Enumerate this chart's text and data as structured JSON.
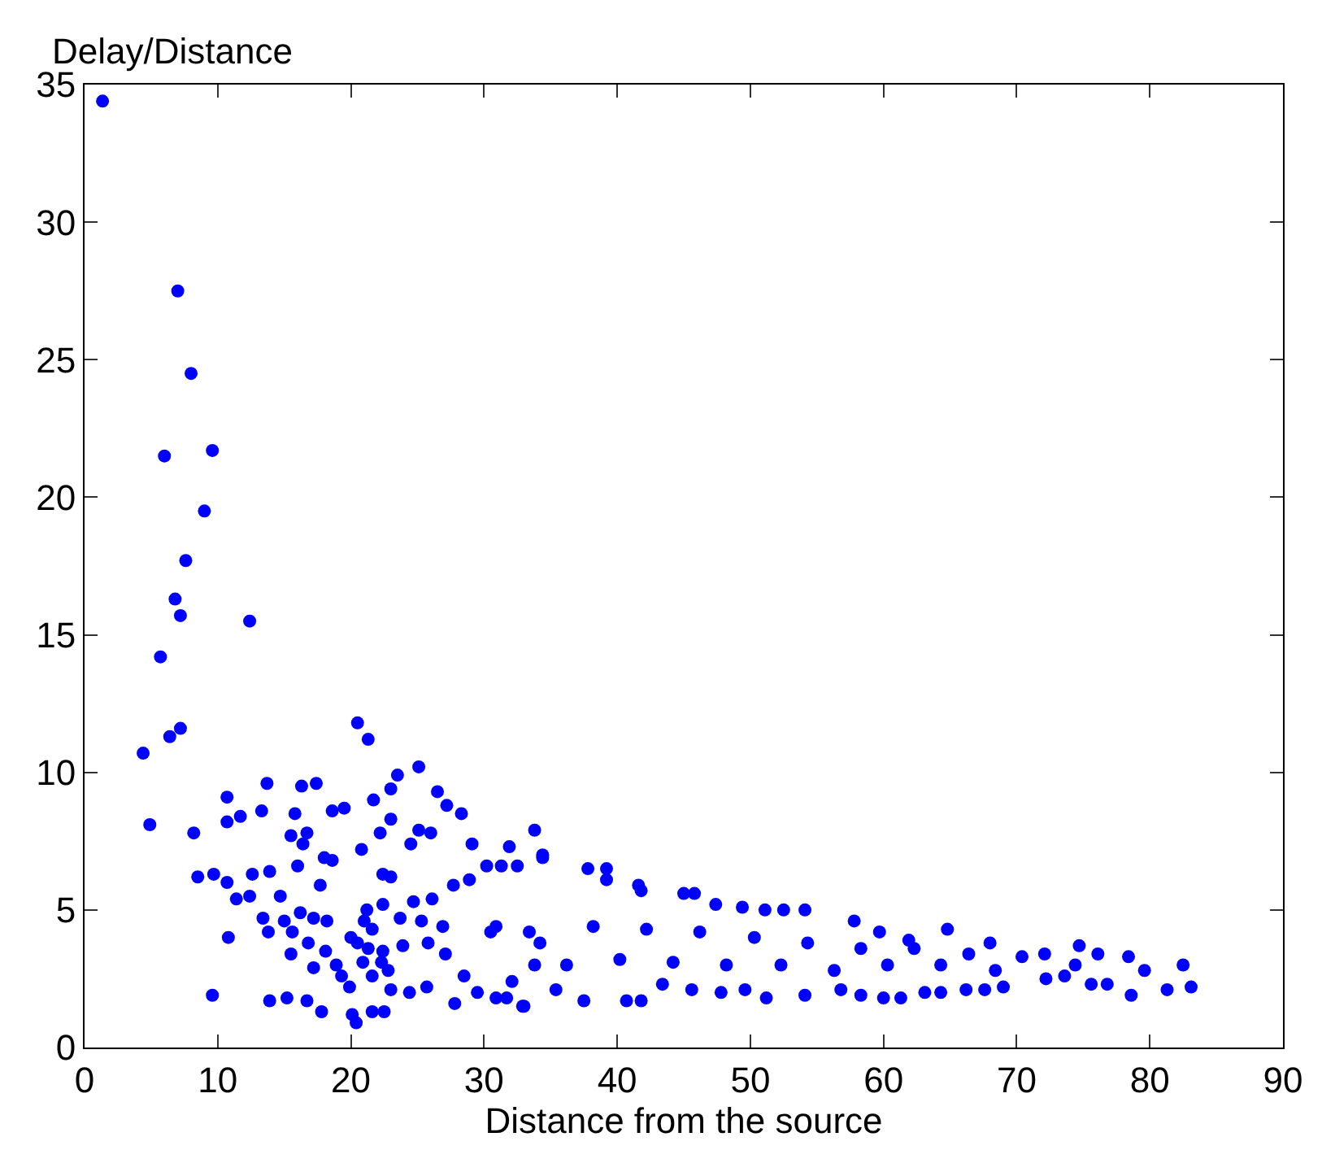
{
  "chart_data": {
    "type": "scatter",
    "xlabel": "Distance from the source",
    "ylabel": "Delay/Distance",
    "xlim": [
      0,
      90
    ],
    "xticks": [
      0,
      10,
      20,
      30,
      40,
      50,
      60,
      70,
      80,
      90
    ],
    "ylim": [
      0,
      35
    ],
    "yticks": [
      0,
      5,
      10,
      15,
      20,
      25,
      30,
      35
    ],
    "marker": "circle",
    "series": [
      {
        "color": "#0000ff",
        "x": [
          1.35,
          7.0,
          8.0,
          6.0,
          9.6,
          9.0,
          7.6,
          6.8,
          7.2,
          12.4,
          5.7,
          20.5,
          21.3,
          7.2,
          6.4,
          4.4,
          25.1,
          4.9,
          8.2,
          23.5,
          23.0,
          21.7,
          13.7,
          10.7,
          16.3,
          17.4,
          19.5,
          18.6,
          13.3,
          11.7,
          10.7,
          15.8,
          26.5,
          27.2,
          28.3,
          23.0,
          22.2,
          25.1,
          26.0,
          15.5,
          16.7,
          16.4,
          20.8,
          24.5,
          29.1,
          18.0,
          18.6,
          33.8,
          8.5,
          9.7,
          12.6,
          13.9,
          16.0,
          22.4,
          23.0,
          31.9,
          30.2,
          31.3,
          32.5,
          34.4,
          10.7,
          12.4,
          14.7,
          17.7,
          11.4,
          10.8,
          13.4,
          13.8,
          15.0,
          16.2,
          15.6,
          17.2,
          18.2,
          16.8,
          18.1,
          17.2,
          15.5,
          18.9,
          19.3,
          19.9,
          9.6,
          13.9,
          15.2,
          16.7,
          17.8,
          20.1,
          20.4,
          21.6,
          22.5,
          20.0,
          20.5,
          21.2,
          21.0,
          21.6,
          21.3,
          22.4,
          20.9,
          21.6,
          22.3,
          22.8,
          23.0,
          22.4,
          23.7,
          23.9,
          24.4,
          24.7,
          25.3,
          25.8,
          25.7,
          26.1,
          26.9,
          27.1,
          27.8,
          27.7,
          28.9,
          28.5,
          29.5,
          30.9,
          30.5,
          32.1,
          33.0,
          33.4,
          33.8,
          39.2,
          37.8,
          34.4,
          39.2,
          41.6,
          41.8,
          45.0,
          45.8,
          47.4,
          49.4,
          51.1,
          52.5,
          54.1,
          57.8,
          59.7,
          61.9,
          64.8,
          68.0,
          72.1,
          74.7,
          76.1,
          78.4,
          82.5,
          83.1,
          81.3,
          78.6,
          76.8,
          75.6,
          73.6,
          72.2,
          69.0,
          67.6,
          66.2,
          64.3,
          63.1,
          61.3,
          60.0,
          58.3,
          56.8,
          54.1,
          51.2,
          49.6,
          47.8,
          45.6,
          43.4,
          41.8,
          40.7,
          37.5,
          35.4,
          32.9,
          31.7,
          70.4,
          74.4,
          79.6,
          66.4,
          62.3,
          58.3,
          54.3,
          50.3,
          46.2,
          42.2,
          38.2,
          34.2,
          30.9,
          56.3,
          52.3,
          48.2,
          44.2,
          40.2,
          36.2,
          60.3,
          64.3,
          68.4
        ],
        "values": [
          34.4,
          27.5,
          24.5,
          21.5,
          21.7,
          19.5,
          17.7,
          16.3,
          15.7,
          15.5,
          14.2,
          11.8,
          11.2,
          11.6,
          11.3,
          10.7,
          10.2,
          8.1,
          7.8,
          9.9,
          9.4,
          9.0,
          9.6,
          9.1,
          9.5,
          9.6,
          8.7,
          8.6,
          8.6,
          8.4,
          8.2,
          8.5,
          9.3,
          8.8,
          8.5,
          8.3,
          7.8,
          7.9,
          7.8,
          7.7,
          7.8,
          7.4,
          7.2,
          7.4,
          7.4,
          6.9,
          6.8,
          7.9,
          6.2,
          6.3,
          6.3,
          6.4,
          6.6,
          6.3,
          6.2,
          7.3,
          6.6,
          6.6,
          6.6,
          7.0,
          6.0,
          5.5,
          5.5,
          5.9,
          5.4,
          4.0,
          4.7,
          4.2,
          4.6,
          4.9,
          4.2,
          4.7,
          4.6,
          3.8,
          3.5,
          2.9,
          3.4,
          3.0,
          2.6,
          2.2,
          1.9,
          1.7,
          1.8,
          1.7,
          1.3,
          1.2,
          0.9,
          1.3,
          1.3,
          4.0,
          3.8,
          5.0,
          4.6,
          4.3,
          3.6,
          3.5,
          3.1,
          2.6,
          3.1,
          2.8,
          2.1,
          5.2,
          4.7,
          3.7,
          2.0,
          5.3,
          4.6,
          3.8,
          2.2,
          5.4,
          4.4,
          3.4,
          1.6,
          5.9,
          6.1,
          2.6,
          2.0,
          1.8,
          4.2,
          2.4,
          1.5,
          4.2,
          3.0,
          6.5,
          6.5,
          6.9,
          6.1,
          5.9,
          5.7,
          5.6,
          5.6,
          5.2,
          5.1,
          5.0,
          5.0,
          5.0,
          4.6,
          4.2,
          3.9,
          4.3,
          3.8,
          3.4,
          3.7,
          3.4,
          3.3,
          3.0,
          2.2,
          2.1,
          1.9,
          2.3,
          2.3,
          2.6,
          2.5,
          2.2,
          2.1,
          2.1,
          2.0,
          2.0,
          1.8,
          1.8,
          1.9,
          2.1,
          1.9,
          1.8,
          2.1,
          2.0,
          2.1,
          2.3,
          1.7,
          1.7,
          1.7,
          2.1,
          1.5,
          1.8,
          3.3,
          3.0,
          2.8,
          3.4,
          3.6,
          3.6,
          3.8,
          4.0,
          4.2,
          4.3,
          4.4,
          3.8,
          4.4,
          2.8,
          3.0,
          3.0,
          3.1,
          3.2,
          3.0,
          3.0,
          3.0,
          2.8
        ]
      }
    ]
  }
}
